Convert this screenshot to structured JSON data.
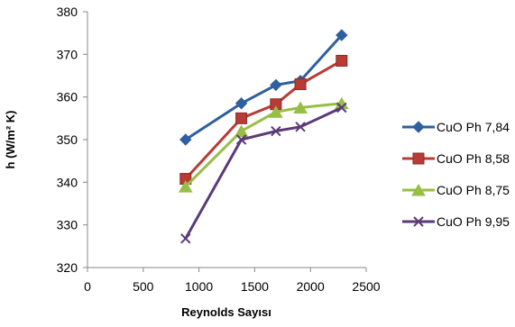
{
  "chart_data": {
    "type": "line",
    "title": "",
    "xlabel": "Reynolds Sayısı",
    "ylabel": "h (W/m² K)",
    "xlim": [
      0,
      2500
    ],
    "ylim": [
      320,
      380
    ],
    "x_ticks": [
      "0",
      "500",
      "1000",
      "1500",
      "2000",
      "2500"
    ],
    "y_ticks": [
      "320",
      "330",
      "340",
      "350",
      "360",
      "370",
      "380"
    ],
    "grid": false,
    "legend_position": "right",
    "series": [
      {
        "name": "CuO Ph 7,84",
        "color": "#2e5f9e",
        "marker": "diamond",
        "x": [
          880,
          1380,
          1690,
          1910,
          2280
        ],
        "y": [
          350,
          358.5,
          362.8,
          363.8,
          374.5
        ]
      },
      {
        "name": "CuO Ph 8,58",
        "color": "#b83b36",
        "marker": "square",
        "x": [
          880,
          1380,
          1690,
          1910,
          2280
        ],
        "y": [
          340.8,
          355,
          358.3,
          363,
          368.5
        ]
      },
      {
        "name": "CuO Ph 8,75",
        "color": "#97be45",
        "marker": "triangle",
        "x": [
          880,
          1380,
          1690,
          1910,
          2280
        ],
        "y": [
          339,
          352,
          356.5,
          357.5,
          358.5
        ]
      },
      {
        "name": "CuO Ph 9,95",
        "color": "#5b3a78",
        "marker": "x",
        "x": [
          880,
          1380,
          1690,
          1910,
          2280
        ],
        "y": [
          326.8,
          350,
          352,
          353,
          357.5
        ]
      }
    ]
  }
}
